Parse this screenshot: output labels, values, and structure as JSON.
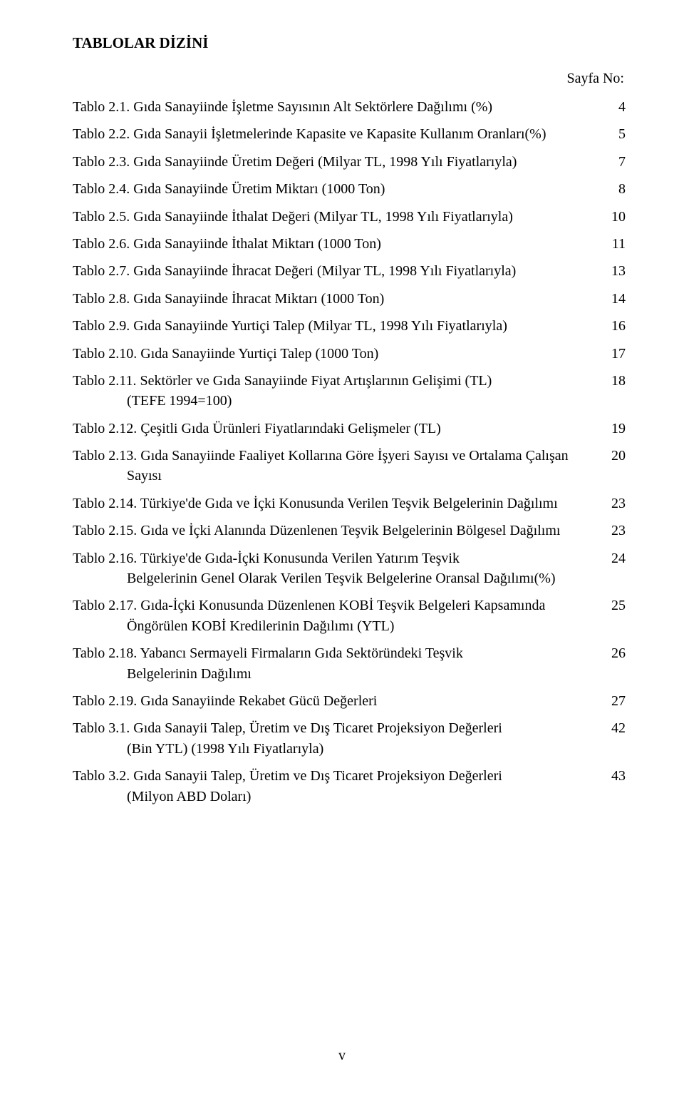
{
  "heading": "TABLOLAR DİZİNİ",
  "page_label": "Sayfa No:",
  "footer_page": "v",
  "entries": [
    {
      "text": "Tablo 2.1. Gıda Sanayiinde İşletme Sayısının Alt Sektörlere Dağılımı (%)",
      "page": "4"
    },
    {
      "text": "Tablo 2.2. Gıda Sanayii İşletmelerinde Kapasite ve Kapasite Kullanım Oranları(%)",
      "page": "5"
    },
    {
      "text": "Tablo 2.3. Gıda Sanayiinde Üretim Değeri (Milyar TL, 1998 Yılı Fiyatlarıyla)",
      "page": "7"
    },
    {
      "text": "Tablo 2.4. Gıda Sanayiinde Üretim Miktarı (1000 Ton)",
      "page": "8"
    },
    {
      "text": "Tablo 2.5. Gıda Sanayiinde İthalat Değeri (Milyar TL, 1998 Yılı Fiyatlarıyla)",
      "page": "10"
    },
    {
      "text": "Tablo 2.6. Gıda Sanayiinde İthalat Miktarı (1000 Ton)",
      "page": "11"
    },
    {
      "text": "Tablo 2.7. Gıda Sanayiinde İhracat Değeri (Milyar TL, 1998 Yılı Fiyatlarıyla)",
      "page": "13"
    },
    {
      "text": "Tablo 2.8. Gıda Sanayiinde İhracat Miktarı (1000 Ton)",
      "page": "14"
    },
    {
      "text": "Tablo 2.9. Gıda Sanayiinde Yurtiçi Talep (Milyar TL, 1998 Yılı Fiyatlarıyla)",
      "page": "16"
    },
    {
      "text": "Tablo 2.10. Gıda Sanayiinde Yurtiçi Talep (1000 Ton)",
      "page": "17"
    },
    {
      "text": "Tablo 2.11. Sektörler ve Gıda Sanayiinde Fiyat Artışlarının Gelişimi (TL)",
      "cont": "(TEFE 1994=100)",
      "page": "18"
    },
    {
      "text": "Tablo 2.12. Çeşitli Gıda Ürünleri Fiyatlarındaki Gelişmeler (TL)",
      "page": "19"
    },
    {
      "text": "Tablo 2.13. Gıda Sanayiinde Faaliyet Kollarına Göre İşyeri Sayısı ve Ortalama Çalışan",
      "cont": "Sayısı",
      "page": "20"
    },
    {
      "text": "Tablo 2.14. Türkiye'de Gıda ve İçki Konusunda Verilen Teşvik Belgelerinin Dağılımı",
      "page": "23"
    },
    {
      "text": "Tablo 2.15. Gıda ve İçki Alanında Düzenlenen Teşvik Belgelerinin Bölgesel Dağılımı",
      "page": "23"
    },
    {
      "text": "Tablo 2.16. Türkiye'de Gıda-İçki Konusunda Verilen Yatırım Teşvik",
      "cont": "Belgelerinin Genel Olarak Verilen Teşvik Belgelerine Oransal Dağılımı(%)",
      "page": "24"
    },
    {
      "text": "Tablo 2.17. Gıda-İçki Konusunda Düzenlenen KOBİ Teşvik Belgeleri Kapsamında",
      "cont": "Öngörülen KOBİ Kredilerinin Dağılımı (YTL)",
      "page": "25"
    },
    {
      "text": "Tablo 2.18. Yabancı Sermayeli Firmaların Gıda Sektöründeki Teşvik",
      "cont": "Belgelerinin Dağılımı",
      "page": "26"
    },
    {
      "text": "Tablo 2.19. Gıda Sanayiinde Rekabet Gücü Değerleri",
      "page": "27"
    },
    {
      "text": "Tablo 3.1. Gıda Sanayii Talep, Üretim ve Dış Ticaret Projeksiyon Değerleri",
      "cont": "(Bin YTL) (1998 Yılı Fiyatlarıyla)",
      "page": "42"
    },
    {
      "text": "Tablo 3.2. Gıda Sanayii Talep, Üretim ve Dış Ticaret Projeksiyon Değerleri",
      "cont": "(Milyon ABD Doları)",
      "page": "43"
    }
  ]
}
